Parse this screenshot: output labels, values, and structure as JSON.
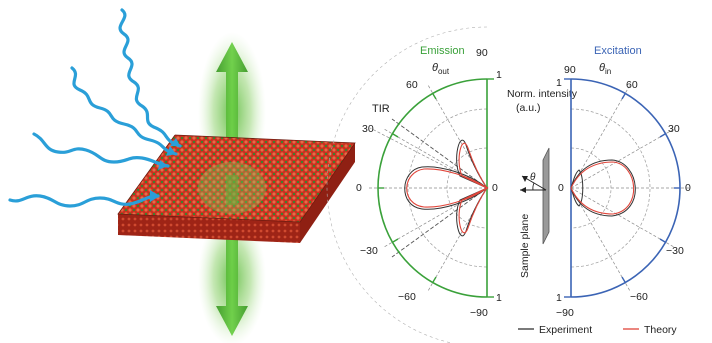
{
  "emission_panel": {
    "title": "Emission",
    "angle_symbol": "θ",
    "angle_subscript": "out",
    "tir_label": "TIR",
    "angle_ticks": [
      "90",
      "60",
      "30",
      "0",
      "−30",
      "−60",
      "−90"
    ],
    "radial_ticks": [
      "1",
      "1"
    ],
    "accent_color": "#3aa13a"
  },
  "excitation_panel": {
    "title": "Excitation",
    "angle_symbol": "θ",
    "angle_subscript": "in",
    "angle_ticks": [
      "90",
      "60",
      "30",
      "0",
      "−30",
      "−60",
      "−90"
    ],
    "radial_ticks": [
      "1",
      "1"
    ],
    "accent_color": "#3b64b5"
  },
  "intensity_axis": {
    "line1": "Norm. intensity",
    "line2": "(a.u.)"
  },
  "sample_plane": {
    "label": "Sample plane",
    "angle_symbol": "θ"
  },
  "legend": {
    "experiment_label": "Experiment",
    "experiment_color": "#333333",
    "theory_label": "Theory",
    "theory_color": "#e0453a"
  },
  "illustration": {
    "incoming_light_color": "#2a9fd8",
    "emission_glow_color": "#5cb83a",
    "crystal_red": "#d13b2a",
    "crystal_green": "#2e8b2e"
  }
}
